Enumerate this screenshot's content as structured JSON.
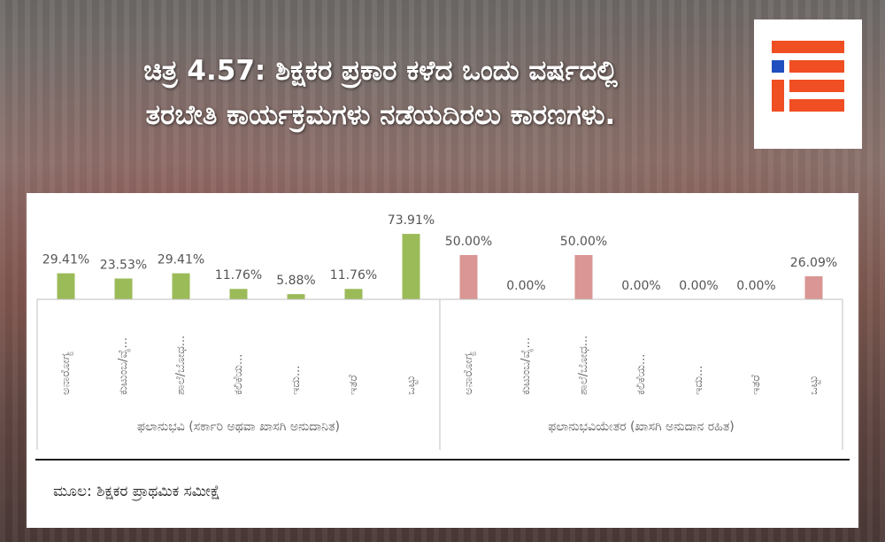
{
  "title": {
    "line1": "ಚಿತ್ರ 4.57: ಶಿಕ್ಷಕರ ಪ್ರಕಾರ ಕಳೆದ ಒಂದು ವರ್ಷದಲ್ಲಿ",
    "line2": "ತರಬೇತಿ ಕಾರ್ಯಕ್ರಮಗಳು ನಡೆಯದಿರಲು ಕಾರಣಗಳು."
  },
  "logo": {
    "name": "ie-logo",
    "primary_color": "#f04e23",
    "accent_color": "#1f4fbf"
  },
  "source": "ಮೂಲ: ಶಿಕ್ಷಕರ ಪ್ರಾಥಮಿಕ ಸಮೀಕ್ಷೆ",
  "chart_data": {
    "type": "bar",
    "groups": [
      {
        "name": "ಫಲಾನುಭವಿ (ಸರ್ಕಾರಿ ಅಥವಾ ಖಾಸಗಿ ಅನುದಾನಿತ)",
        "color": "#9bbb59",
        "categories": [
          "ಅನಾರೋಗ್ಯ",
          "ಕುಟುಂಬ/ವೈ...",
          "ಶಾಲೆ/ಬೋಧ...",
          "ಕಲಿಕೆಯ...",
          "ಇದು...",
          "ಇತರೆ",
          "ಒಟ್ಟು"
        ],
        "values": [
          29.41,
          23.53,
          29.41,
          11.76,
          5.88,
          11.76,
          73.91
        ],
        "labels": [
          "29.41%",
          "23.53%",
          "29.41%",
          "11.76%",
          "5.88%",
          "11.76%",
          "73.91%"
        ]
      },
      {
        "name": "ಫಲಾನುಭವಿಯೇತರ (ಖಾಸಗಿ ಅನುದಾನ ರಹಿತ)",
        "color": "#d99694",
        "categories": [
          "ಅನಾರೋಗ್ಯ",
          "ಕುಟುಂಬ/ವೈ...",
          "ಶಾಲೆ/ಬೋಧ...",
          "ಕಲಿಕೆಯ...",
          "ಇದು...",
          "ಇತರೆ",
          "ಒಟ್ಟು"
        ],
        "values": [
          50.0,
          0.0,
          50.0,
          0.0,
          0.0,
          0.0,
          26.09
        ],
        "labels": [
          "50.00%",
          "0.00%",
          "50.00%",
          "0.00%",
          "0.00%",
          "0.00%",
          "26.09%"
        ]
      }
    ],
    "ylim": [
      0,
      80
    ],
    "grid": false,
    "legend": "none"
  }
}
